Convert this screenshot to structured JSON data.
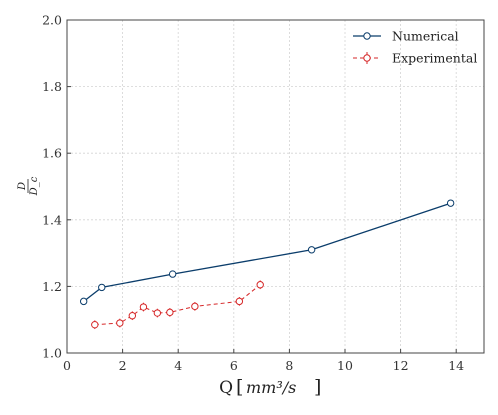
{
  "chart_data": {
    "type": "line",
    "xlabel": "Q",
    "xlabel_unit": "mm³/s",
    "ylabel_numerator": "D",
    "ylabel_denominator": "D_c",
    "xlim": [
      0,
      15
    ],
    "ylim": [
      1.0,
      2.0
    ],
    "x_ticks": [
      "0",
      "2",
      "4",
      "6",
      "8",
      "10",
      "12",
      "14"
    ],
    "y_ticks": [
      "1.0",
      "1.2",
      "1.4",
      "1.6",
      "1.8",
      "2.0"
    ],
    "grid": true,
    "legend_position": "top-right",
    "series": [
      {
        "name": "Numerical",
        "color": "#0b3d6b",
        "style": "solid",
        "marker": "circle",
        "x": [
          0.6,
          1.25,
          3.8,
          8.8,
          13.8
        ],
        "y": [
          1.155,
          1.197,
          1.237,
          1.31,
          1.45
        ]
      },
      {
        "name": "Experimental",
        "color": "#d62728",
        "style": "dashed",
        "marker": "circle",
        "x": [
          1.0,
          1.9,
          2.35,
          2.75,
          3.25,
          3.7,
          4.6,
          6.2,
          6.95
        ],
        "y": [
          1.085,
          1.09,
          1.112,
          1.138,
          1.12,
          1.122,
          1.14,
          1.155,
          1.205
        ],
        "error": [
          0.013,
          0.013,
          0.013,
          0.013,
          0.013,
          0.013,
          0.013,
          0.013,
          0.013
        ]
      }
    ]
  }
}
